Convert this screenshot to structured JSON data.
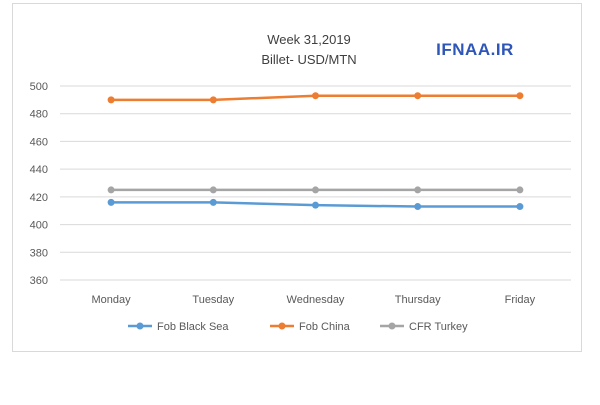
{
  "watermark": "IFNAA.IR",
  "chart_data": {
    "type": "line",
    "title": "Week 31,2019",
    "subtitle": "Billet- USD/MTN",
    "xlabel": "",
    "ylabel": "",
    "categories": [
      "Monday",
      "Tuesday",
      "Wednesday",
      "Thursday",
      "Friday"
    ],
    "ylim": [
      360,
      500
    ],
    "yticks": [
      360,
      380,
      400,
      420,
      440,
      460,
      480,
      500
    ],
    "grid": true,
    "legend_position": "bottom",
    "series": [
      {
        "name": "Fob Black Sea",
        "color": "#5b9bd5",
        "values": [
          416,
          416,
          414,
          413,
          413
        ]
      },
      {
        "name": "Fob China",
        "color": "#ed7d31",
        "values": [
          490,
          490,
          493,
          493,
          493
        ]
      },
      {
        "name": "CFR Turkey",
        "color": "#a5a5a5",
        "values": [
          425,
          425,
          425,
          425,
          425
        ]
      }
    ]
  }
}
